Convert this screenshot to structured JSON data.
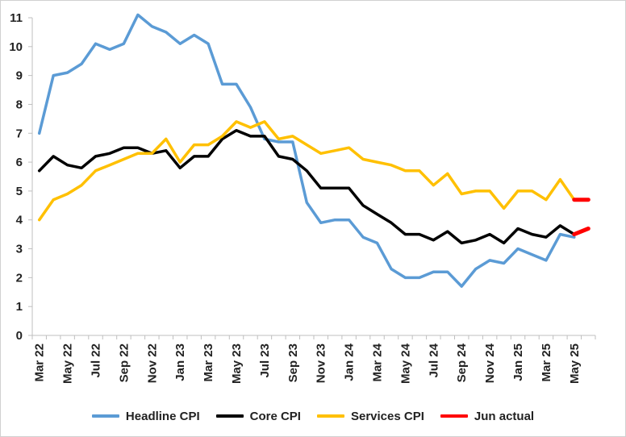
{
  "chart_data": {
    "type": "line",
    "title": "",
    "xlabel": "",
    "ylabel": "",
    "ylim": [
      0,
      11
    ],
    "yticks": [
      "0",
      "1",
      "2",
      "3",
      "4",
      "5",
      "6",
      "7",
      "8",
      "9",
      "10",
      "11"
    ],
    "x": [
      "Mar 22",
      "Apr 22",
      "May 22",
      "Jun 22",
      "Jul 22",
      "Aug 22",
      "Sep 22",
      "Oct 22",
      "Nov 22",
      "Dec 22",
      "Jan 23",
      "Feb 23",
      "Mar 23",
      "Apr 23",
      "May 23",
      "Jun 23",
      "Jul 23",
      "Aug 23",
      "Sep 23",
      "Oct 23",
      "Nov 23",
      "Dec 23",
      "Jan 24",
      "Feb 24",
      "Mar 24",
      "Apr 24",
      "May 24",
      "Jun 24",
      "Jul 24",
      "Aug 24",
      "Sep 24",
      "Oct 24",
      "Nov 24",
      "Dec 24",
      "Jan 25",
      "Feb 25",
      "Mar 25",
      "Apr 25",
      "May 25",
      "Jun 25"
    ],
    "xtick_labels": [
      "Mar 22",
      "May 22",
      "Jul 22",
      "Sep 22",
      "Nov 22",
      "Jan 23",
      "Mar 23",
      "May 23",
      "Jul 23",
      "Sep 23",
      "Nov 23",
      "Jan 24",
      "Mar 24",
      "May 24",
      "Jul 24",
      "Sep 24",
      "Nov 24",
      "Jan 25",
      "Mar 25",
      "May 25"
    ],
    "series": [
      {
        "name": "Headline CPI",
        "color": "#5b9bd5",
        "values": [
          7.0,
          9.0,
          9.1,
          9.4,
          10.1,
          9.9,
          10.1,
          11.1,
          10.7,
          10.5,
          10.1,
          10.4,
          10.1,
          8.7,
          8.7,
          7.9,
          6.8,
          6.7,
          6.7,
          4.6,
          3.9,
          4.0,
          4.0,
          3.4,
          3.2,
          2.3,
          2.0,
          2.0,
          2.2,
          2.2,
          1.7,
          2.3,
          2.6,
          2.5,
          3.0,
          2.8,
          2.6,
          3.5,
          3.4,
          null
        ]
      },
      {
        "name": "Core CPI",
        "color": "#000000",
        "values": [
          5.7,
          6.2,
          5.9,
          5.8,
          6.2,
          6.3,
          6.5,
          6.5,
          6.3,
          6.4,
          5.8,
          6.2,
          6.2,
          6.8,
          7.1,
          6.9,
          6.9,
          6.2,
          6.1,
          5.7,
          5.1,
          5.1,
          5.1,
          4.5,
          4.2,
          3.9,
          3.5,
          3.5,
          3.3,
          3.6,
          3.2,
          3.3,
          3.5,
          3.2,
          3.7,
          3.5,
          3.4,
          3.8,
          3.5,
          null
        ]
      },
      {
        "name": "Services CPI",
        "color": "#ffc000",
        "values": [
          4.0,
          4.7,
          4.9,
          5.2,
          5.7,
          5.9,
          6.1,
          6.3,
          6.3,
          6.8,
          6.0,
          6.6,
          6.6,
          6.9,
          7.4,
          7.2,
          7.4,
          6.8,
          6.9,
          6.6,
          6.3,
          6.4,
          6.5,
          6.1,
          6.0,
          5.9,
          5.7,
          5.7,
          5.2,
          5.6,
          4.9,
          5.0,
          5.0,
          4.4,
          5.0,
          5.0,
          4.7,
          5.4,
          4.7,
          null
        ]
      },
      {
        "name": "Jun actual",
        "color": "#ff0000",
        "values": [
          null,
          null,
          null,
          null,
          null,
          null,
          null,
          null,
          null,
          null,
          null,
          null,
          null,
          null,
          null,
          null,
          null,
          null,
          null,
          null,
          null,
          null,
          null,
          null,
          null,
          null,
          null,
          null,
          null,
          null,
          null,
          null,
          null,
          null,
          null,
          null,
          null,
          null,
          3.5,
          3.7
        ],
        "extra_segments": [
          {
            "values_index": [
              38,
              39
            ],
            "values": [
              4.7,
              4.7
            ]
          }
        ]
      }
    ],
    "legend_position": "bottom",
    "grid": false
  }
}
